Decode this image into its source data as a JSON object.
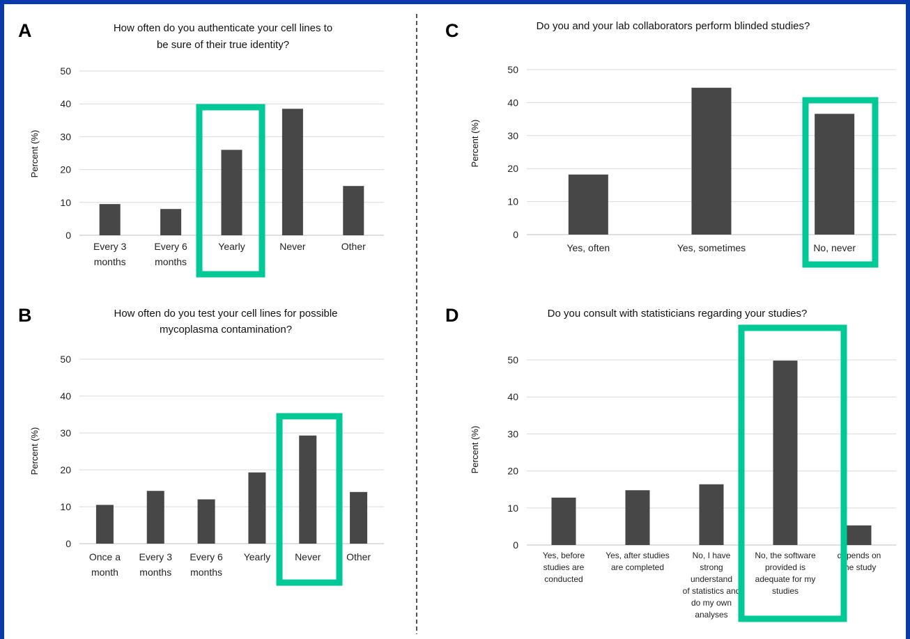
{
  "chart_data": [
    {
      "panel": "A",
      "type": "bar",
      "title": "How often do you authenticate your cell lines to be sure of their true identity?",
      "ylabel": "Percent (%)",
      "categories": [
        "Every 3 months",
        "Every 6 months",
        "Yearly",
        "Never",
        "Other"
      ],
      "values": [
        9.5,
        8,
        26,
        38.5,
        15
      ],
      "ylim": [
        0,
        50
      ],
      "yticks": [
        0,
        10,
        20,
        30,
        40,
        50
      ],
      "grid": true,
      "highlighted_category": "Yearly"
    },
    {
      "panel": "B",
      "type": "bar",
      "title": "How often do you test your cell lines for possible mycoplasma contamination?",
      "ylabel": "Percent (%)",
      "categories": [
        "Once a month",
        "Every 3 months",
        "Every 6 months",
        "Yearly",
        "Never",
        "Other"
      ],
      "values": [
        10.5,
        14.3,
        12,
        19.3,
        29.3,
        14
      ],
      "ylim": [
        0,
        50
      ],
      "yticks": [
        0,
        10,
        20,
        30,
        40,
        50
      ],
      "grid": true,
      "highlighted_category": "Never"
    },
    {
      "panel": "C",
      "type": "bar",
      "title": "Do you and your lab collaborators perform blinded studies?",
      "ylabel": "Percent (%)",
      "categories": [
        "Yes, often",
        "Yes, sometimes",
        "No, never"
      ],
      "values": [
        18.2,
        44.5,
        36.6
      ],
      "ylim": [
        0,
        50
      ],
      "yticks": [
        0,
        10,
        20,
        30,
        40,
        50
      ],
      "grid": true,
      "highlighted_category": "No, never"
    },
    {
      "panel": "D",
      "type": "bar",
      "title": "Do you consult with statisticians regarding your studies?",
      "ylabel": "Percent (%)",
      "categories": [
        "Yes, before studies are conducted",
        "Yes, after studies are completed",
        "No, I have strong understand of statistics and do my own analyses",
        "No, the software provided is adequate for my studies",
        "depends on the study"
      ],
      "category_display_lines": [
        [
          "Yes, before",
          "studies are",
          "conducted"
        ],
        [
          "Yes, after studies",
          "are completed"
        ],
        [
          "No, I have",
          "strong",
          "understand",
          "of statistics and",
          "do my own",
          "analyses"
        ],
        [
          "No, the software",
          "provided is",
          "adequate for my",
          "studies"
        ],
        [
          "depends on",
          "the study"
        ]
      ],
      "values": [
        12.8,
        14.8,
        16.4,
        49.8,
        5.3
      ],
      "ylim": [
        0,
        50
      ],
      "yticks": [
        0,
        10,
        20,
        30,
        40,
        50
      ],
      "grid": true,
      "highlighted_category": "No, the software provided is adequate for my studies"
    }
  ],
  "colors": {
    "bar": "#474747",
    "highlight_box": "#00c896",
    "gridline": "#d9d9d9",
    "divider": "#555555",
    "border": "#0a3aa8"
  }
}
